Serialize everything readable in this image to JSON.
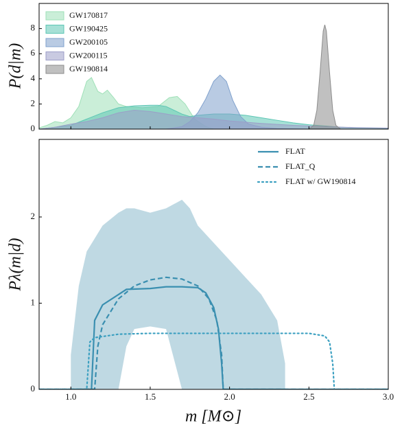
{
  "chart_data": [
    {
      "type": "area",
      "ylabel": "P(d|m)",
      "xlim": [
        0.8,
        3.0
      ],
      "ylim": [
        0,
        10
      ],
      "xticks": [
        1,
        1.5,
        2,
        2.5,
        3
      ],
      "yticks": [
        0,
        2,
        4,
        6,
        8
      ],
      "legend": "upper left",
      "series": [
        {
          "name": "GW170817",
          "color": "#9fe0b8",
          "x": [
            0.8,
            0.85,
            0.9,
            0.95,
            1.0,
            1.05,
            1.1,
            1.13,
            1.17,
            1.2,
            1.23,
            1.27,
            1.3,
            1.35,
            1.45,
            1.55,
            1.62,
            1.67,
            1.72,
            1.78,
            1.85,
            1.9
          ],
          "values": [
            0.1,
            0.3,
            0.6,
            0.5,
            0.9,
            1.8,
            3.8,
            4.1,
            3.0,
            2.8,
            3.1,
            2.5,
            2.0,
            1.8,
            1.7,
            1.8,
            2.5,
            2.6,
            2.0,
            0.8,
            0.2,
            0
          ]
        },
        {
          "name": "GW190425",
          "color": "#5cc6b4",
          "x": [
            0.8,
            1.0,
            1.1,
            1.2,
            1.3,
            1.4,
            1.5,
            1.55,
            1.6,
            1.7,
            1.75,
            1.8,
            1.9,
            2.0,
            2.1,
            2.2,
            2.3,
            2.4,
            2.5,
            2.6,
            2.7,
            2.8,
            3.0
          ],
          "values": [
            0,
            0.3,
            0.8,
            1.3,
            1.7,
            1.85,
            1.9,
            1.9,
            1.8,
            1.2,
            1.0,
            1.1,
            1.2,
            1.2,
            1.1,
            0.9,
            0.7,
            0.5,
            0.35,
            0.25,
            0.15,
            0.1,
            0.05
          ]
        },
        {
          "name": "GW200105",
          "color": "#7fa0cc",
          "x": [
            1.6,
            1.7,
            1.75,
            1.8,
            1.85,
            1.9,
            1.94,
            1.98,
            2.02,
            2.07,
            2.12,
            2.2,
            2.3,
            2.5
          ],
          "values": [
            0,
            0.2,
            0.6,
            1.3,
            2.4,
            3.8,
            4.3,
            3.8,
            2.3,
            1.0,
            0.4,
            0.15,
            0.05,
            0
          ]
        },
        {
          "name": "GW200115",
          "color": "#9c9ec8",
          "x": [
            0.8,
            0.9,
            1.0,
            1.1,
            1.2,
            1.3,
            1.4,
            1.5,
            1.6,
            1.7,
            1.8,
            1.9,
            2.0,
            2.2,
            2.4,
            2.6,
            2.8,
            3.0
          ],
          "values": [
            0,
            0.15,
            0.4,
            0.6,
            0.9,
            1.3,
            1.5,
            1.4,
            1.2,
            1.0,
            0.9,
            0.8,
            0.65,
            0.45,
            0.3,
            0.2,
            0.12,
            0.08
          ]
        },
        {
          "name": "GW190814",
          "color": "#8c8c8c",
          "x": [
            2.5,
            2.53,
            2.55,
            2.57,
            2.59,
            2.6,
            2.61,
            2.63,
            2.65,
            2.67,
            2.7
          ],
          "values": [
            0,
            0.3,
            1.5,
            4.5,
            7.8,
            8.3,
            7.8,
            4.5,
            1.5,
            0.3,
            0
          ]
        }
      ]
    },
    {
      "type": "line",
      "xlabel": "m [M⊙]",
      "ylabel": "Pλ(m|d)",
      "xlim": [
        0.8,
        3.0
      ],
      "ylim": [
        0,
        2.9
      ],
      "xticks": [
        {
          "value": 1,
          "label": "1.0"
        },
        {
          "value": 1.5,
          "label": "1.5"
        },
        {
          "value": 2,
          "label": "2.0"
        },
        {
          "value": 2.5,
          "label": "2.5"
        },
        {
          "value": 3,
          "label": "3.0"
        }
      ],
      "yticks": [
        0,
        1,
        2
      ],
      "legend": "upper right",
      "band": {
        "color": "#a9ccd9",
        "x": [
          1.0,
          1.05,
          1.1,
          1.2,
          1.3,
          1.35,
          1.4,
          1.5,
          1.6,
          1.7,
          1.75,
          1.8,
          1.9,
          2.0,
          2.1,
          2.2,
          2.3,
          2.35
        ],
        "lower": [
          0,
          0,
          0,
          0,
          0,
          0.5,
          0.7,
          0.73,
          0.7,
          0,
          0,
          0,
          0,
          0,
          0,
          0,
          0,
          0
        ],
        "upper": [
          0.4,
          1.2,
          1.6,
          1.9,
          2.05,
          2.1,
          2.1,
          2.05,
          2.1,
          2.2,
          2.1,
          1.9,
          1.7,
          1.5,
          1.3,
          1.1,
          0.8,
          0.3
        ]
      },
      "series": [
        {
          "name": "FLAT",
          "color": "#3a8fb0",
          "dash": "solid",
          "x": [
            0.8,
            1.13,
            1.15,
            1.2,
            1.3,
            1.35,
            1.5,
            1.6,
            1.7,
            1.8,
            1.85,
            1.9,
            1.93,
            1.95,
            1.96,
            3.0
          ],
          "values": [
            0,
            0,
            0.8,
            0.98,
            1.1,
            1.16,
            1.17,
            1.19,
            1.19,
            1.18,
            1.12,
            0.95,
            0.7,
            0.3,
            0,
            0
          ]
        },
        {
          "name": "FLAT_Q",
          "color": "#3a8fb0",
          "dash": "dashed",
          "x": [
            0.8,
            1.15,
            1.17,
            1.2,
            1.3,
            1.4,
            1.5,
            1.6,
            1.7,
            1.8,
            1.87,
            1.92,
            1.95,
            1.96,
            3.0
          ],
          "values": [
            0,
            0,
            0.5,
            0.75,
            1.05,
            1.2,
            1.27,
            1.3,
            1.28,
            1.2,
            1.05,
            0.8,
            0.4,
            0,
            0
          ]
        },
        {
          "name": "FLAT w/ GW190814",
          "color": "#3a9fc0",
          "dash": "dotted",
          "x": [
            0.8,
            1.1,
            1.12,
            1.15,
            1.3,
            1.5,
            2.0,
            2.5,
            2.6,
            2.63,
            2.65,
            2.66,
            3.0
          ],
          "values": [
            0,
            0,
            0.55,
            0.6,
            0.64,
            0.65,
            0.65,
            0.65,
            0.62,
            0.55,
            0.3,
            0,
            0
          ]
        }
      ]
    }
  ]
}
